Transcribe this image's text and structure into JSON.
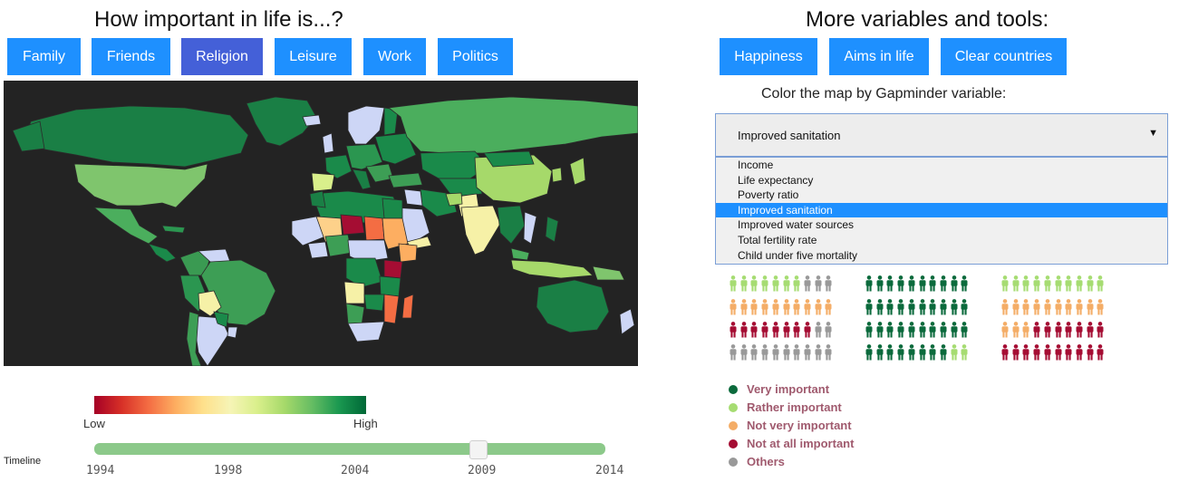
{
  "left_title": "How important in life is...?",
  "right_title": "More variables and tools:",
  "topic_buttons": [
    {
      "label": "Family"
    },
    {
      "label": "Friends"
    },
    {
      "label": "Religion",
      "active": true
    },
    {
      "label": "Leisure"
    },
    {
      "label": "Work"
    },
    {
      "label": "Politics"
    }
  ],
  "tool_buttons": [
    {
      "label": "Happiness"
    },
    {
      "label": "Aims in life"
    },
    {
      "label": "Clear countries"
    }
  ],
  "color_select": {
    "label": "Color the map by Gapminder variable:",
    "value": "Improved sanitation",
    "options": [
      "Income",
      "Life expectancy",
      "Poverty ratio",
      "Improved sanitation",
      "Improved water sources",
      "Total fertility rate",
      "Child under five mortality"
    ]
  },
  "legend_scale": {
    "low": "Low",
    "high": "High"
  },
  "timeline": {
    "label": "Timeline",
    "ticks": [
      "1994",
      "1998",
      "2004",
      "2009",
      "2014"
    ],
    "value": "2009"
  },
  "importance_legend": [
    {
      "label": "Very important",
      "color": "#0b6a3c"
    },
    {
      "label": "Rather important",
      "color": "#a6dc72"
    },
    {
      "label": "Not very important",
      "color": "#f4ad67"
    },
    {
      "label": "Not at all important",
      "color": "#a50d33"
    },
    {
      "label": "Others",
      "color": "#999999"
    }
  ],
  "people_groups": [
    {
      "rows": [
        [
          "R",
          7,
          "G",
          3
        ],
        [
          "N",
          10
        ],
        [
          "D",
          8,
          "O",
          2
        ],
        [
          "O",
          10
        ]
      ]
    },
    {
      "rows": [
        [
          "V",
          10
        ],
        [
          "V",
          10
        ],
        [
          "V",
          10
        ],
        [
          "V",
          8,
          "R",
          2
        ]
      ]
    },
    {
      "rows": [
        [
          "R",
          10
        ],
        [
          "N",
          10
        ],
        [
          "N",
          3,
          "D",
          7
        ],
        [
          "D",
          10
        ]
      ]
    }
  ]
}
